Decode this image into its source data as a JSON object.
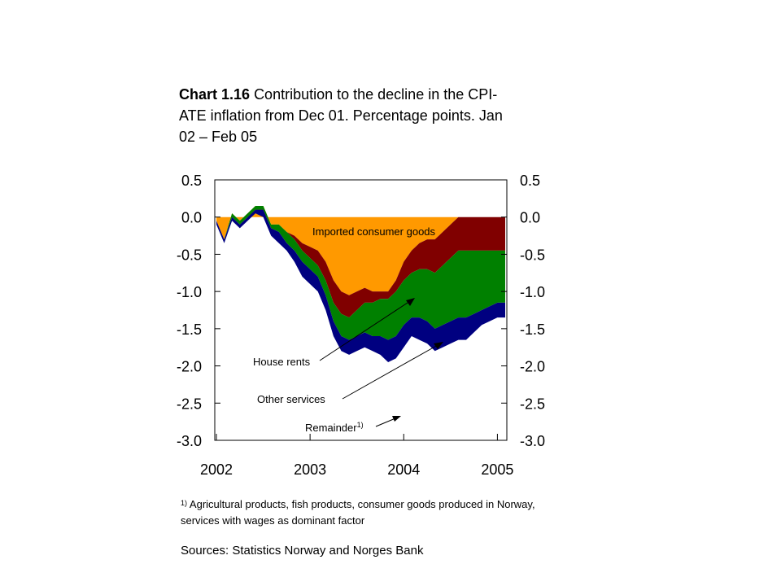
{
  "chart_data": {
    "type": "area",
    "title_bold": "Chart 1.16",
    "title_rest": "Contribution to the decline in the CPI-ATE inflation from Dec 01. Percentage points. Jan 02 – Feb 05",
    "stacking": "stacked, all contributions below zero",
    "ylim": [
      -3.0,
      0.5
    ],
    "yticks": [
      "0.5",
      "0.0",
      "-0.5",
      "-1.0",
      "-1.5",
      "-2.0",
      "-2.5",
      "-3.0"
    ],
    "ytick_values": [
      0.5,
      0.0,
      -0.5,
      -1.0,
      -1.5,
      -2.0,
      -2.5,
      -3.0
    ],
    "xticks": [
      "2002",
      "2003",
      "2004",
      "2005"
    ],
    "x_start": "Jan 02",
    "x_end": "Feb 05",
    "months": 38,
    "grid": false,
    "series": [
      {
        "name": "Imported consumer goods",
        "color": "#ff9900",
        "values": [
          -0.05,
          -0.3,
          0.05,
          -0.05,
          0.05,
          0.15,
          0.15,
          -0.1,
          -0.1,
          -0.2,
          -0.25,
          -0.35,
          -0.4,
          -0.45,
          -0.6,
          -0.85,
          -1.0,
          -1.05,
          -1.0,
          -0.95,
          -1.0,
          -1.0,
          -1.0,
          -0.85,
          -0.6,
          -0.45,
          -0.35,
          -0.3,
          -0.3,
          -0.2,
          -0.1,
          0.0,
          0.0,
          0.0,
          0.0,
          0.0,
          0.0,
          0.0
        ]
      },
      {
        "name": "House rents",
        "color": "#800000",
        "values": [
          0,
          0,
          0,
          0,
          0,
          0,
          0,
          0,
          0,
          0,
          -0.05,
          -0.1,
          -0.15,
          -0.2,
          -0.25,
          -0.3,
          -0.3,
          -0.3,
          -0.25,
          -0.2,
          -0.15,
          -0.1,
          -0.1,
          -0.15,
          -0.25,
          -0.3,
          -0.35,
          -0.4,
          -0.45,
          -0.45,
          -0.45,
          -0.45,
          -0.45,
          -0.45,
          -0.45,
          -0.45,
          -0.45,
          -0.45
        ]
      },
      {
        "name": "Other services",
        "color": "#008000",
        "values": [
          0,
          0,
          -0.05,
          -0.05,
          -0.05,
          -0.05,
          -0.05,
          -0.05,
          -0.1,
          -0.15,
          -0.15,
          -0.15,
          -0.15,
          -0.15,
          -0.2,
          -0.25,
          -0.3,
          -0.3,
          -0.35,
          -0.4,
          -0.45,
          -0.5,
          -0.55,
          -0.6,
          -0.6,
          -0.6,
          -0.65,
          -0.7,
          -0.75,
          -0.8,
          -0.85,
          -0.9,
          -0.9,
          -0.85,
          -0.8,
          -0.75,
          -0.7,
          -0.7
        ]
      },
      {
        "name": "Remainder",
        "name_sup": "1)",
        "color": "#000080",
        "values": [
          -0.05,
          -0.05,
          -0.05,
          -0.05,
          -0.05,
          -0.05,
          -0.1,
          -0.1,
          -0.15,
          -0.1,
          -0.15,
          -0.2,
          -0.2,
          -0.2,
          -0.2,
          -0.2,
          -0.2,
          -0.2,
          -0.2,
          -0.2,
          -0.2,
          -0.25,
          -0.3,
          -0.3,
          -0.3,
          -0.25,
          -0.3,
          -0.3,
          -0.3,
          -0.3,
          -0.3,
          -0.3,
          -0.3,
          -0.25,
          -0.2,
          -0.2,
          -0.2,
          -0.2
        ]
      }
    ],
    "annotations": {
      "imported": "Imported consumer goods",
      "house_rents": "House rents",
      "other_services": "Other services",
      "remainder": "Remainder",
      "remainder_sup": "1)"
    }
  },
  "footnote": {
    "sup": "1)",
    "text": "Agricultural products, fish products, consumer goods produced in Norway, services with wages as dominant factor"
  },
  "sources": "Sources: Statistics Norway and Norges Bank"
}
